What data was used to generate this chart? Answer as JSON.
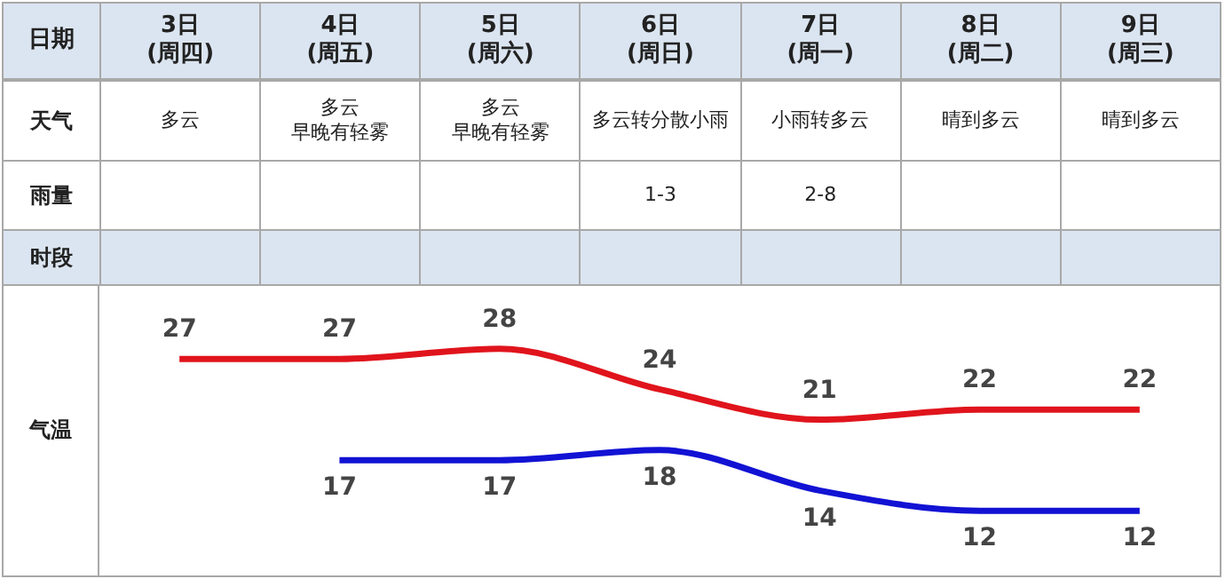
{
  "chart_data": [
    {
      "type": "other",
      "y_categories": [
        "天气",
        "雨量",
        "时段"
      ],
      "cell_labels": [
        [
          "多云",
          [
            "多云",
            "早晚有轻雾"
          ],
          [
            "多云",
            "早晚有轻雾"
          ],
          "多云转分散小雨",
          "小雨转多云",
          "晴到多云",
          "晴到多云"
        ],
        [
          null,
          null,
          null,
          "1-3",
          "2-8",
          null,
          null
        ],
        [
          null,
          null,
          null,
          null,
          null,
          null,
          null
        ]
      ]
    },
    {
      "type": "line",
      "xlabel": "日期",
      "ylabel": "气温",
      "categories": [
        "3日\n(周四)",
        "4日\n(周五)",
        "5日\n(周六)",
        "6日\n(周日)",
        "7日\n(周一)",
        "8日\n(周二)",
        "9日\n(周三)"
      ],
      "tick_labels": "x",
      "data_labels": true,
      "marker": "none",
      "legend": false,
      "series": [
        {
          "color": "#e0141c",
          "values": [
            27,
            27,
            28,
            24,
            21,
            22,
            22
          ]
        },
        {
          "color": "#1212d4",
          "values": [
            null,
            17,
            17,
            18,
            14,
            12,
            12
          ]
        }
      ]
    }
  ]
}
